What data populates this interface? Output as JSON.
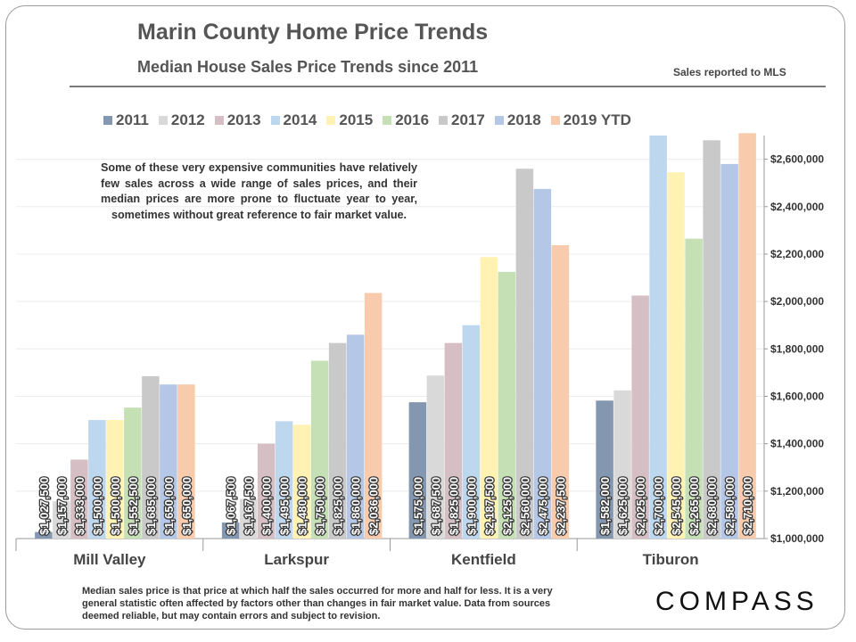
{
  "header": {
    "title": "Marin County Home Price Trends",
    "subtitle": "Median House Sales Price Trends since 2011",
    "source_note": "Sales reported to MLS"
  },
  "annotation": "Some of these very expensive communities have relatively few sales across a wide range of sales prices, and their median prices are more prone to fluctuate year to year, sometimes without great reference to fair market value.",
  "footer": "Median sales price is that price at which half the sales occurred for more and half for less. It is a very general statistic often affected by factors other than changes in fair market value. Data from sources deemed reliable, but may contain errors and subject to revision.",
  "brand": "COMPASS",
  "chart_data": {
    "type": "bar",
    "title": "Median House Sales Price Trends since 2011",
    "categories": [
      "Mill Valley",
      "Larkspur",
      "Kentfield",
      "Tiburon"
    ],
    "ylim": [
      1000000,
      2700000
    ],
    "yticks": [
      1000000,
      1200000,
      1400000,
      1600000,
      1800000,
      2000000,
      2200000,
      2400000,
      2600000
    ],
    "ytick_labels": [
      "$1,000,000",
      "$1,200,000",
      "$1,400,000",
      "$1,600,000",
      "$1,800,000",
      "$2,000,000",
      "$2,200,000",
      "$2,400,000",
      "$2,600,000"
    ],
    "y_axis_side": "right",
    "legend_position": "top",
    "series": [
      {
        "name": "2011",
        "color": "#8497b0",
        "values": [
          1027500,
          1067500,
          1575000,
          1582000
        ],
        "labels": [
          "$1,027,500",
          "$1,067,500",
          "$1,575,000",
          "$1,582,000"
        ]
      },
      {
        "name": "2012",
        "color": "#d9d9d9",
        "values": [
          1157000,
          1167500,
          1687500,
          1625000
        ],
        "labels": [
          "$1,157,000",
          "$1,167,500",
          "$1,687,500",
          "$1,625,000"
        ]
      },
      {
        "name": "2013",
        "color": "#d5bfc4",
        "values": [
          1333000,
          1400000,
          1825000,
          2025000
        ],
        "labels": [
          "$1,333,000",
          "$1,400,000",
          "$1,825,000",
          "$2,025,000"
        ]
      },
      {
        "name": "2014",
        "color": "#bdd7ee",
        "values": [
          1500000,
          1495000,
          1900000,
          2700000
        ],
        "labels": [
          "$1,500,000",
          "$1,495,000",
          "$1,900,000",
          "$2,700,000"
        ]
      },
      {
        "name": "2015",
        "color": "#fff2b3",
        "values": [
          1500000,
          1480000,
          2187500,
          2545000
        ],
        "labels": [
          "$1,500,000",
          "$1,480,000",
          "$2,187,500",
          "$2,545,000"
        ]
      },
      {
        "name": "2016",
        "color": "#c5e0b4",
        "values": [
          1552500,
          1750000,
          2125000,
          2265000
        ],
        "labels": [
          "$1,552,500",
          "$1,750,000",
          "$2,125,000",
          "$2,265,000"
        ]
      },
      {
        "name": "2017",
        "color": "#c9c9c9",
        "values": [
          1685000,
          1825000,
          2560000,
          2680000
        ],
        "labels": [
          "$1,685,000",
          "$1,825,000",
          "$2,560,000",
          "$2,680,000"
        ]
      },
      {
        "name": "2018",
        "color": "#b4c7e7",
        "values": [
          1650000,
          1860000,
          2475000,
          2580000
        ],
        "labels": [
          "$1,650,000",
          "$1,860,000",
          "$2,475,000",
          "$2,580,000"
        ]
      },
      {
        "name": "2019 YTD",
        "color": "#f8cbad",
        "values": [
          1650000,
          2036000,
          2237500,
          2710000
        ],
        "labels": [
          "$1,650,000",
          "$2,036,000",
          "$2,237,500",
          "$2,710,000"
        ]
      }
    ]
  }
}
